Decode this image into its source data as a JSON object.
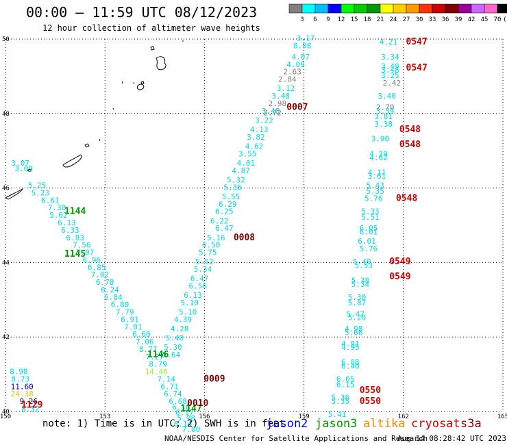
{
  "header": {
    "title": "00:00 – 11:59 UTC 08/12/2023",
    "subtitle": "12 hour collection of altimeter wave heights"
  },
  "colorbar": {
    "labels": [
      "3",
      "6",
      "9",
      "12",
      "15",
      "18",
      "21",
      "24",
      "27",
      "30",
      "33",
      "36",
      "39",
      "42",
      "45",
      "70",
      "(ft)"
    ],
    "colors": [
      "#808080",
      "#00ffff",
      "#00bfff",
      "#0000ff",
      "#00ff00",
      "#00cc00",
      "#009900",
      "#ffff00",
      "#ffcc00",
      "#ff9900",
      "#ff3300",
      "#cc0000",
      "#800000",
      "#990099",
      "#cc66ff",
      "#ff66cc",
      "#000000"
    ]
  },
  "footer": {
    "note": "note: 1) Time is in UTC; 2) SWH is in feet",
    "satellites": [
      {
        "name": "jason2",
        "color": "#0000ff"
      },
      {
        "name": "jason3",
        "color": "#009900"
      },
      {
        "name": "altika",
        "color": "#ff8800"
      },
      {
        "name": "cryosat",
        "color": "#cc0000"
      },
      {
        "name": "s3a",
        "color": "#800000"
      }
    ],
    "credit": "NOAA/NESDIS Center for Satellite Applications and Research",
    "timestamp": "Aug 14 08:28:42 UTC 2023"
  },
  "chart_data": {
    "type": "scatter",
    "xlim": [
      150,
      165
    ],
    "ylim": [
      40,
      50
    ],
    "x_ticks": [
      150,
      153,
      156,
      159,
      162,
      165
    ],
    "y_ticks": [
      40,
      42,
      44,
      46,
      48,
      50
    ],
    "grid": true,
    "value_colors": {
      "cyan": "#00d8e8",
      "gray": "#808080",
      "blue": "#0000ff",
      "navy": "#000080",
      "yellow": "#e6c800",
      "lime": "#99ee33"
    },
    "passes": [
      {
        "time": "1144",
        "satellite": "jason3",
        "x": 152.1,
        "y": 45.3
      },
      {
        "time": "1145",
        "satellite": "jason3",
        "x": 152.1,
        "y": 44.15
      },
      {
        "time": "1146",
        "satellite": "jason3",
        "x": 154.6,
        "y": 41.45
      },
      {
        "time": "1147",
        "satellite": "jason3",
        "x": 155.6,
        "y": 40.0
      },
      {
        "time": "1129",
        "satellite": "cryosat",
        "x": 150.8,
        "y": 40.1
      },
      {
        "time": "0007",
        "satellite": "s3a",
        "x": 158.8,
        "y": 48.1
      },
      {
        "time": "0008",
        "satellite": "s3a",
        "x": 157.2,
        "y": 44.6
      },
      {
        "time": "0009",
        "satellite": "s3a",
        "x": 156.3,
        "y": 40.8
      },
      {
        "time": "0010",
        "satellite": "s3a",
        "x": 155.8,
        "y": 40.15
      },
      {
        "time": "0547",
        "satellite": "cryosat",
        "x": 162.4,
        "y": 49.85
      },
      {
        "time": "0547",
        "satellite": "cryosat",
        "x": 162.4,
        "y": 49.15
      },
      {
        "time": "0548",
        "satellite": "cryosat",
        "x": 162.2,
        "y": 47.5
      },
      {
        "time": "0548",
        "satellite": "cryosat",
        "x": 162.2,
        "y": 47.1
      },
      {
        "time": "0548",
        "satellite": "cryosat",
        "x": 162.1,
        "y": 45.65
      },
      {
        "time": "0549",
        "satellite": "cryosat",
        "x": 161.9,
        "y": 43.95
      },
      {
        "time": "0549",
        "satellite": "cryosat",
        "x": 161.9,
        "y": 43.55
      },
      {
        "time": "0550",
        "satellite": "cryosat",
        "x": 161.0,
        "y": 40.5
      },
      {
        "time": "0550",
        "satellite": "cryosat",
        "x": 161.0,
        "y": 40.2
      }
    ],
    "points": [
      {
        "v": "3.07",
        "x": 150.45,
        "y": 46.6,
        "c": "cyan"
      },
      {
        "v": "3.09",
        "x": 150.55,
        "y": 46.45,
        "c": "cyan"
      },
      {
        "v": "5.25",
        "x": 150.95,
        "y": 46.0,
        "c": "cyan"
      },
      {
        "v": "5.23",
        "x": 151.05,
        "y": 45.8,
        "c": "cyan"
      },
      {
        "v": "6.61",
        "x": 151.35,
        "y": 45.6,
        "c": "cyan"
      },
      {
        "v": "7.30",
        "x": 151.55,
        "y": 45.4,
        "c": "cyan"
      },
      {
        "v": "5.62",
        "x": 151.6,
        "y": 45.2,
        "c": "cyan"
      },
      {
        "v": "6.13",
        "x": 151.85,
        "y": 45.0,
        "c": "cyan"
      },
      {
        "v": "6.33",
        "x": 151.95,
        "y": 44.8,
        "c": "cyan"
      },
      {
        "v": "6.83",
        "x": 152.1,
        "y": 44.6,
        "c": "cyan"
      },
      {
        "v": "7.56",
        "x": 152.3,
        "y": 44.4,
        "c": "cyan"
      },
      {
        "v": "7.07",
        "x": 152.4,
        "y": 44.2,
        "c": "cyan"
      },
      {
        "v": "6.96",
        "x": 152.6,
        "y": 44.0,
        "c": "cyan"
      },
      {
        "v": "6.85",
        "x": 152.75,
        "y": 43.8,
        "c": "cyan"
      },
      {
        "v": "7.02",
        "x": 152.85,
        "y": 43.6,
        "c": "cyan"
      },
      {
        "v": "6.78",
        "x": 153.0,
        "y": 43.4,
        "c": "cyan"
      },
      {
        "v": "6.24",
        "x": 153.15,
        "y": 43.2,
        "c": "cyan"
      },
      {
        "v": "6.84",
        "x": 153.25,
        "y": 43.0,
        "c": "cyan"
      },
      {
        "v": "6.80",
        "x": 153.45,
        "y": 42.8,
        "c": "cyan"
      },
      {
        "v": "7.79",
        "x": 153.6,
        "y": 42.6,
        "c": "cyan"
      },
      {
        "v": "6.91",
        "x": 153.75,
        "y": 42.4,
        "c": "cyan"
      },
      {
        "v": "7.01",
        "x": 153.85,
        "y": 42.2,
        "c": "cyan"
      },
      {
        "v": "6.60",
        "x": 154.1,
        "y": 42.0,
        "c": "cyan"
      },
      {
        "v": "7.06",
        "x": 154.2,
        "y": 41.8,
        "c": "cyan"
      },
      {
        "v": "8.77",
        "x": 154.3,
        "y": 41.6,
        "c": "cyan"
      },
      {
        "v": "7.27",
        "x": 154.5,
        "y": 41.4,
        "c": "cyan"
      },
      {
        "v": "8.79",
        "x": 154.6,
        "y": 41.2,
        "c": "cyan"
      },
      {
        "v": "14.46",
        "x": 154.55,
        "y": 41.0,
        "c": "lime"
      },
      {
        "v": "7.14",
        "x": 154.85,
        "y": 40.8,
        "c": "cyan"
      },
      {
        "v": "6.71",
        "x": 154.95,
        "y": 40.6,
        "c": "cyan"
      },
      {
        "v": "6.74",
        "x": 155.05,
        "y": 40.4,
        "c": "cyan"
      },
      {
        "v": "6.68",
        "x": 155.2,
        "y": 40.2,
        "c": "cyan"
      },
      {
        "v": "6.16",
        "x": 155.3,
        "y": 40.05,
        "c": "cyan"
      },
      {
        "v": "6.17",
        "x": 155.4,
        "y": 39.9,
        "c": "cyan"
      },
      {
        "v": "5.98",
        "x": 155.45,
        "y": 39.75,
        "c": "cyan"
      },
      {
        "v": "6.14",
        "x": 155.35,
        "y": 39.6,
        "c": "cyan"
      },
      {
        "v": "7.00",
        "x": 155.6,
        "y": 39.45,
        "c": "cyan"
      },
      {
        "v": "8.98",
        "x": 150.4,
        "y": 41.0,
        "c": "cyan"
      },
      {
        "v": "8.73",
        "x": 150.45,
        "y": 40.8,
        "c": "cyan"
      },
      {
        "v": "11.60",
        "x": 150.5,
        "y": 40.6,
        "c": "blue"
      },
      {
        "v": "24.38",
        "x": 150.5,
        "y": 40.4,
        "c": "yellow"
      },
      {
        "v": "9.26",
        "x": 150.7,
        "y": 40.2,
        "c": "navy"
      },
      {
        "v": "8.32",
        "x": 150.75,
        "y": 40.0,
        "c": "cyan"
      },
      {
        "v": "3.17",
        "x": 159.05,
        "y": 49.95,
        "c": "cyan"
      },
      {
        "v": "8.08",
        "x": 158.95,
        "y": 49.75,
        "c": "cyan"
      },
      {
        "v": "4.07",
        "x": 158.9,
        "y": 49.45,
        "c": "cyan"
      },
      {
        "v": "4.09",
        "x": 158.75,
        "y": 49.25,
        "c": "cyan"
      },
      {
        "v": "2.63",
        "x": 158.65,
        "y": 49.05,
        "c": "gray"
      },
      {
        "v": "2.84",
        "x": 158.5,
        "y": 48.85,
        "c": "gray"
      },
      {
        "v": "3.12",
        "x": 158.45,
        "y": 48.6,
        "c": "cyan"
      },
      {
        "v": "3.48",
        "x": 158.3,
        "y": 48.4,
        "c": "cyan"
      },
      {
        "v": "2.98",
        "x": 158.2,
        "y": 48.2,
        "c": "gray"
      },
      {
        "v": "3.48",
        "x": 158.0,
        "y": 48.0,
        "c": "cyan"
      },
      {
        "v": "2.72",
        "x": 158.05,
        "y": 47.95,
        "c": "gray"
      },
      {
        "v": "3.22",
        "x": 157.8,
        "y": 47.75,
        "c": "cyan"
      },
      {
        "v": "4.13",
        "x": 157.65,
        "y": 47.5,
        "c": "cyan"
      },
      {
        "v": "3.82",
        "x": 157.55,
        "y": 47.3,
        "c": "cyan"
      },
      {
        "v": "4.62",
        "x": 157.5,
        "y": 47.05,
        "c": "cyan"
      },
      {
        "v": "3.55",
        "x": 157.3,
        "y": 46.85,
        "c": "cyan"
      },
      {
        "v": "4.01",
        "x": 157.25,
        "y": 46.6,
        "c": "cyan"
      },
      {
        "v": "4.87",
        "x": 157.1,
        "y": 46.4,
        "c": "cyan"
      },
      {
        "v": "5.32",
        "x": 156.95,
        "y": 46.15,
        "c": "cyan"
      },
      {
        "v": "5.36",
        "x": 156.85,
        "y": 45.95,
        "c": "cyan"
      },
      {
        "v": "5.55",
        "x": 156.8,
        "y": 45.7,
        "c": "cyan"
      },
      {
        "v": "6.29",
        "x": 156.7,
        "y": 45.5,
        "c": "cyan"
      },
      {
        "v": "6.25",
        "x": 156.6,
        "y": 45.3,
        "c": "cyan"
      },
      {
        "v": "6.22",
        "x": 156.45,
        "y": 45.05,
        "c": "cyan"
      },
      {
        "v": "6.47",
        "x": 156.6,
        "y": 44.85,
        "c": "cyan"
      },
      {
        "v": "5.16",
        "x": 156.35,
        "y": 44.6,
        "c": "cyan"
      },
      {
        "v": "6.50",
        "x": 156.2,
        "y": 44.4,
        "c": "cyan"
      },
      {
        "v": "5.75",
        "x": 156.1,
        "y": 44.2,
        "c": "cyan"
      },
      {
        "v": "5.52",
        "x": 156.0,
        "y": 43.95,
        "c": "cyan"
      },
      {
        "v": "5.34",
        "x": 155.95,
        "y": 43.75,
        "c": "cyan"
      },
      {
        "v": "6.47",
        "x": 155.85,
        "y": 43.5,
        "c": "cyan"
      },
      {
        "v": "6.56",
        "x": 155.8,
        "y": 43.3,
        "c": "cyan"
      },
      {
        "v": "6.13",
        "x": 155.65,
        "y": 43.05,
        "c": "cyan"
      },
      {
        "v": "5.10",
        "x": 155.55,
        "y": 42.85,
        "c": "cyan"
      },
      {
        "v": "5.10",
        "x": 155.5,
        "y": 42.6,
        "c": "cyan"
      },
      {
        "v": "4.39",
        "x": 155.35,
        "y": 42.4,
        "c": "cyan"
      },
      {
        "v": "4.28",
        "x": 155.25,
        "y": 42.15,
        "c": "cyan"
      },
      {
        "v": "5.40",
        "x": 155.1,
        "y": 41.9,
        "c": "cyan"
      },
      {
        "v": "5.30",
        "x": 155.05,
        "y": 41.65,
        "c": "cyan"
      },
      {
        "v": "5.64",
        "x": 155.0,
        "y": 41.45,
        "c": "cyan"
      },
      {
        "v": "4.21",
        "x": 161.55,
        "y": 49.85,
        "c": "cyan"
      },
      {
        "v": "3.34",
        "x": 161.6,
        "y": 49.45,
        "c": "cyan"
      },
      {
        "v": "3.49",
        "x": 161.6,
        "y": 49.2,
        "c": "cyan"
      },
      {
        "v": "3.48",
        "x": 161.6,
        "y": 49.1,
        "c": "cyan"
      },
      {
        "v": "3.25",
        "x": 161.6,
        "y": 48.95,
        "c": "cyan"
      },
      {
        "v": "2.42",
        "x": 161.65,
        "y": 48.75,
        "c": "gray"
      },
      {
        "v": "3.40",
        "x": 161.5,
        "y": 48.4,
        "c": "cyan"
      },
      {
        "v": "2.70",
        "x": 161.45,
        "y": 48.1,
        "c": "gray"
      },
      {
        "v": "3.39",
        "x": 161.45,
        "y": 48.0,
        "c": "cyan"
      },
      {
        "v": "3.81",
        "x": 161.4,
        "y": 47.85,
        "c": "cyan"
      },
      {
        "v": "3.38",
        "x": 161.4,
        "y": 47.65,
        "c": "cyan"
      },
      {
        "v": "3.90",
        "x": 161.3,
        "y": 47.25,
        "c": "cyan"
      },
      {
        "v": "4.19",
        "x": 161.25,
        "y": 46.85,
        "c": "cyan"
      },
      {
        "v": "4.62",
        "x": 161.25,
        "y": 46.75,
        "c": "cyan"
      },
      {
        "v": "4.11",
        "x": 161.2,
        "y": 46.35,
        "c": "cyan"
      },
      {
        "v": "3.61",
        "x": 161.2,
        "y": 46.25,
        "c": "cyan"
      },
      {
        "v": "5.43",
        "x": 161.15,
        "y": 46.0,
        "c": "cyan"
      },
      {
        "v": "5.35",
        "x": 161.15,
        "y": 45.85,
        "c": "cyan"
      },
      {
        "v": "5.76",
        "x": 161.1,
        "y": 45.65,
        "c": "cyan"
      },
      {
        "v": "5.33",
        "x": 161.0,
        "y": 45.3,
        "c": "cyan"
      },
      {
        "v": "5.51",
        "x": 161.0,
        "y": 45.15,
        "c": "cyan"
      },
      {
        "v": "6.05",
        "x": 160.95,
        "y": 44.85,
        "c": "cyan"
      },
      {
        "v": "6.01",
        "x": 160.95,
        "y": 44.75,
        "c": "cyan"
      },
      {
        "v": "6.01",
        "x": 160.9,
        "y": 44.5,
        "c": "cyan"
      },
      {
        "v": "5.76",
        "x": 160.95,
        "y": 44.3,
        "c": "cyan"
      },
      {
        "v": "5.49",
        "x": 160.75,
        "y": 43.95,
        "c": "cyan"
      },
      {
        "v": "5.53",
        "x": 160.8,
        "y": 43.85,
        "c": "cyan"
      },
      {
        "v": "5.38",
        "x": 160.7,
        "y": 43.45,
        "c": "cyan"
      },
      {
        "v": "5.34",
        "x": 160.7,
        "y": 43.35,
        "c": "cyan"
      },
      {
        "v": "5.30",
        "x": 160.6,
        "y": 43.0,
        "c": "cyan"
      },
      {
        "v": "5.87",
        "x": 160.6,
        "y": 42.85,
        "c": "cyan"
      },
      {
        "v": "5.47",
        "x": 160.55,
        "y": 42.55,
        "c": "cyan"
      },
      {
        "v": "5.20",
        "x": 160.6,
        "y": 42.45,
        "c": "cyan"
      },
      {
        "v": "4.98",
        "x": 160.5,
        "y": 42.15,
        "c": "cyan"
      },
      {
        "v": "5.66",
        "x": 160.5,
        "y": 42.05,
        "c": "cyan"
      },
      {
        "v": "4.91",
        "x": 160.4,
        "y": 41.75,
        "c": "cyan"
      },
      {
        "v": "4.95",
        "x": 160.4,
        "y": 41.65,
        "c": "cyan"
      },
      {
        "v": "6.08",
        "x": 160.4,
        "y": 41.25,
        "c": "cyan"
      },
      {
        "v": "6.40",
        "x": 160.4,
        "y": 41.15,
        "c": "cyan"
      },
      {
        "v": "6.05",
        "x": 160.25,
        "y": 40.8,
        "c": "cyan"
      },
      {
        "v": "6.15",
        "x": 160.25,
        "y": 40.65,
        "c": "cyan"
      },
      {
        "v": "5.36",
        "x": 160.1,
        "y": 40.3,
        "c": "cyan"
      },
      {
        "v": "5.35",
        "x": 160.1,
        "y": 40.2,
        "c": "cyan"
      },
      {
        "v": "5.41",
        "x": 160.0,
        "y": 39.85,
        "c": "cyan"
      }
    ]
  }
}
